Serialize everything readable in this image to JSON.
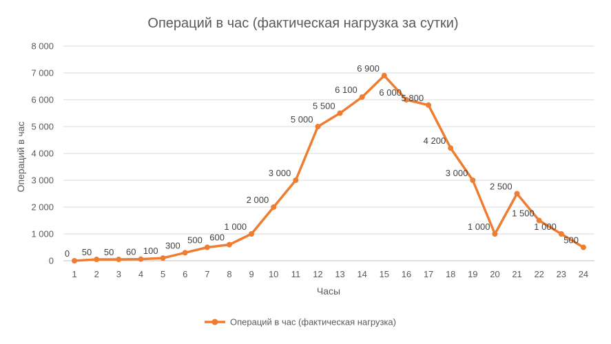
{
  "chart_data": {
    "type": "line",
    "title": "Операций в час (фактическая нагрузка за сутки)",
    "xlabel": "Часы",
    "ylabel": "Операций в час",
    "categories": [
      "1",
      "2",
      "3",
      "4",
      "5",
      "6",
      "7",
      "8",
      "9",
      "10",
      "11",
      "12",
      "13",
      "14",
      "15",
      "16",
      "17",
      "18",
      "19",
      "20",
      "21",
      "22",
      "23",
      "24"
    ],
    "yticks": [
      "0",
      "1 000",
      "2 000",
      "3 000",
      "4 000",
      "5 000",
      "6 000",
      "7 000",
      "8 000"
    ],
    "ylim": [
      0,
      8000
    ],
    "grid": true,
    "legend_position": "bottom",
    "series": [
      {
        "name": "Операций в час (фактическая нагрузка)",
        "color": "#ed7d31",
        "values": [
          0,
          50,
          50,
          60,
          100,
          300,
          500,
          600,
          1000,
          2000,
          3000,
          5000,
          5500,
          6100,
          6900,
          6000,
          5800,
          4200,
          3000,
          1000,
          2500,
          1500,
          1000,
          500
        ],
        "data_labels": [
          "0",
          "50",
          "50",
          "60",
          "100",
          "300",
          "500",
          "600",
          "1 000",
          "2 000",
          "3 000",
          "5 000",
          "5 500",
          "6 100",
          "6 900",
          "6 000",
          "5 800",
          "4 200",
          "3 000",
          "1 000",
          "2 500",
          "1 500",
          "1 000",
          "500"
        ]
      }
    ]
  }
}
